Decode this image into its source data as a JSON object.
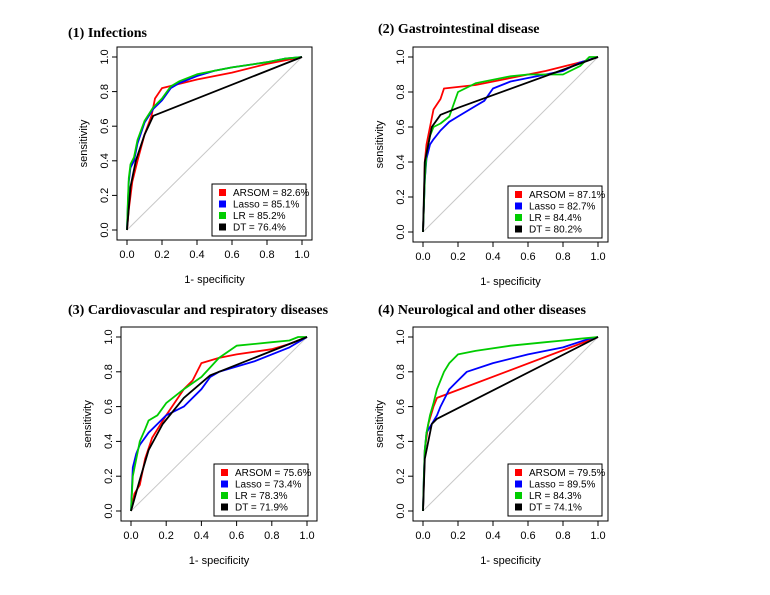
{
  "chart_data": [
    {
      "type": "line",
      "title": "(1) Infections",
      "xlabel": "1- specificity",
      "ylabel": "sensitivity",
      "xlim": [
        0,
        1
      ],
      "ylim": [
        0,
        1
      ],
      "ticks": [
        "0.0",
        "0.2",
        "0.4",
        "0.6",
        "0.8",
        "1.0"
      ],
      "series": [
        {
          "name": "ARSOM = 82.6%",
          "color": "#ff0000",
          "x": [
            0,
            0.01,
            0.03,
            0.06,
            0.1,
            0.14,
            0.16,
            0.2,
            0.4,
            0.6,
            0.8,
            1.0
          ],
          "y": [
            0,
            0.12,
            0.28,
            0.4,
            0.55,
            0.66,
            0.76,
            0.82,
            0.87,
            0.91,
            0.96,
            1.0
          ]
        },
        {
          "name": "Lasso = 85.1%",
          "color": "#0000ff",
          "x": [
            0,
            0.005,
            0.01,
            0.02,
            0.04,
            0.06,
            0.1,
            0.15,
            0.2,
            0.25,
            0.3,
            0.4,
            0.5,
            0.6,
            0.8,
            0.9,
            1.0
          ],
          "y": [
            0,
            0.15,
            0.28,
            0.36,
            0.4,
            0.5,
            0.62,
            0.7,
            0.75,
            0.82,
            0.85,
            0.89,
            0.92,
            0.94,
            0.97,
            0.99,
            1.0
          ]
        },
        {
          "name": "LR = 85.2%",
          "color": "#00cc00",
          "x": [
            0,
            0.005,
            0.01,
            0.02,
            0.04,
            0.06,
            0.1,
            0.15,
            0.2,
            0.25,
            0.3,
            0.4,
            0.5,
            0.6,
            0.8,
            0.9,
            1.0
          ],
          "y": [
            0,
            0.17,
            0.3,
            0.38,
            0.42,
            0.52,
            0.63,
            0.71,
            0.76,
            0.83,
            0.86,
            0.9,
            0.92,
            0.94,
            0.97,
            0.99,
            1.0
          ]
        },
        {
          "name": "DT = 76.4%",
          "color": "#000000",
          "x": [
            0,
            0.02,
            0.05,
            0.1,
            0.15,
            1.0
          ],
          "y": [
            0,
            0.25,
            0.4,
            0.55,
            0.66,
            1.0
          ]
        }
      ],
      "legend": "bottom-right"
    },
    {
      "type": "line",
      "title": "(2) Gastrointestinal disease",
      "xlabel": "1- specificity",
      "ylabel": "sensitivity",
      "xlim": [
        0,
        1
      ],
      "ylim": [
        0,
        1
      ],
      "ticks": [
        "0.0",
        "0.2",
        "0.4",
        "0.6",
        "0.8",
        "1.0"
      ],
      "series": [
        {
          "name": "ARSOM = 87.1%",
          "color": "#ff0000",
          "x": [
            0,
            0.005,
            0.01,
            0.02,
            0.04,
            0.06,
            0.1,
            0.12,
            0.3,
            0.5,
            0.7,
            0.9,
            1.0
          ],
          "y": [
            0,
            0.15,
            0.4,
            0.5,
            0.6,
            0.7,
            0.76,
            0.82,
            0.84,
            0.88,
            0.92,
            0.97,
            1.0
          ]
        },
        {
          "name": "Lasso = 82.7%",
          "color": "#0000ff",
          "x": [
            0,
            0.005,
            0.01,
            0.02,
            0.04,
            0.06,
            0.1,
            0.15,
            0.2,
            0.3,
            0.35,
            0.4,
            0.5,
            0.6,
            0.8,
            0.9,
            1.0
          ],
          "y": [
            0,
            0.15,
            0.3,
            0.42,
            0.5,
            0.53,
            0.58,
            0.63,
            0.66,
            0.72,
            0.75,
            0.82,
            0.86,
            0.88,
            0.92,
            0.97,
            1.0
          ]
        },
        {
          "name": "LR = 84.4%",
          "color": "#00cc00",
          "x": [
            0,
            0.005,
            0.01,
            0.02,
            0.04,
            0.06,
            0.1,
            0.15,
            0.2,
            0.3,
            0.4,
            0.5,
            0.6,
            0.8,
            0.9,
            0.95,
            1.0
          ],
          "y": [
            0,
            0.15,
            0.3,
            0.45,
            0.55,
            0.6,
            0.62,
            0.66,
            0.8,
            0.85,
            0.87,
            0.89,
            0.9,
            0.9,
            0.95,
            1.0,
            1.0
          ]
        },
        {
          "name": "DT = 80.2%",
          "color": "#000000",
          "x": [
            0,
            0.01,
            0.05,
            0.1,
            0.2,
            1.0
          ],
          "y": [
            0,
            0.4,
            0.6,
            0.67,
            0.71,
            1.0
          ]
        }
      ],
      "legend": "bottom-right"
    },
    {
      "type": "line",
      "title": "(3) Cardiovascular and respiratory diseases",
      "xlabel": "1- specificity",
      "ylabel": "sensitivity",
      "xlim": [
        0,
        1
      ],
      "ylim": [
        0,
        1
      ],
      "ticks": [
        "0.0",
        "0.2",
        "0.4",
        "0.6",
        "0.8",
        "1.0"
      ],
      "series": [
        {
          "name": "ARSOM = 75.6%",
          "color": "#ff0000",
          "x": [
            0,
            0.02,
            0.05,
            0.08,
            0.12,
            0.2,
            0.3,
            0.35,
            0.4,
            0.5,
            0.6,
            0.8,
            0.9,
            1.0
          ],
          "y": [
            0,
            0.1,
            0.15,
            0.3,
            0.42,
            0.55,
            0.7,
            0.75,
            0.85,
            0.88,
            0.9,
            0.93,
            0.96,
            1.0
          ]
        },
        {
          "name": "Lasso = 73.4%",
          "color": "#0000ff",
          "x": [
            0,
            0.01,
            0.03,
            0.05,
            0.1,
            0.15,
            0.2,
            0.3,
            0.4,
            0.45,
            0.5,
            0.7,
            0.9,
            1.0
          ],
          "y": [
            0,
            0.25,
            0.33,
            0.38,
            0.45,
            0.5,
            0.55,
            0.6,
            0.7,
            0.77,
            0.8,
            0.86,
            0.94,
            1.0
          ]
        },
        {
          "name": "LR = 78.3%",
          "color": "#00cc00",
          "x": [
            0,
            0.01,
            0.03,
            0.05,
            0.08,
            0.1,
            0.15,
            0.2,
            0.3,
            0.4,
            0.5,
            0.6,
            0.8,
            0.9,
            0.95,
            1.0
          ],
          "y": [
            0,
            0.2,
            0.3,
            0.4,
            0.47,
            0.52,
            0.55,
            0.62,
            0.7,
            0.77,
            0.88,
            0.95,
            0.97,
            0.98,
            1.0,
            1.0
          ]
        },
        {
          "name": "DT = 71.9%",
          "color": "#000000",
          "x": [
            0,
            0.05,
            0.1,
            0.18,
            0.3,
            0.45,
            1.0
          ],
          "y": [
            0,
            0.18,
            0.35,
            0.5,
            0.65,
            0.78,
            1.0
          ]
        }
      ],
      "legend": "bottom-right"
    },
    {
      "type": "line",
      "title": "(4) Neurological and other diseases",
      "xlabel": "1- specificity",
      "ylabel": "sensitivity",
      "xlim": [
        0,
        1
      ],
      "ylim": [
        0,
        1
      ],
      "ticks": [
        "0.0",
        "0.2",
        "0.4",
        "0.6",
        "0.8",
        "1.0"
      ],
      "series": [
        {
          "name": "ARSOM = 79.5%",
          "color": "#ff0000",
          "x": [
            0,
            0.01,
            0.03,
            0.06,
            0.08,
            1.0
          ],
          "y": [
            0,
            0.35,
            0.5,
            0.6,
            0.65,
            1.0
          ]
        },
        {
          "name": "Lasso = 89.5%",
          "color": "#0000ff",
          "x": [
            0,
            0.005,
            0.01,
            0.02,
            0.05,
            0.08,
            0.1,
            0.15,
            0.2,
            0.25,
            0.4,
            0.6,
            0.8,
            0.95,
            1.0
          ],
          "y": [
            0,
            0.2,
            0.35,
            0.45,
            0.5,
            0.55,
            0.6,
            0.7,
            0.75,
            0.8,
            0.85,
            0.9,
            0.94,
            0.99,
            1.0
          ]
        },
        {
          "name": "LR = 84.3%",
          "color": "#00cc00",
          "x": [
            0,
            0.005,
            0.01,
            0.02,
            0.04,
            0.06,
            0.08,
            0.1,
            0.12,
            0.15,
            0.2,
            0.3,
            0.5,
            0.7,
            0.8,
            0.9,
            1.0
          ],
          "y": [
            0,
            0.2,
            0.35,
            0.45,
            0.55,
            0.62,
            0.7,
            0.75,
            0.8,
            0.85,
            0.9,
            0.92,
            0.95,
            0.97,
            0.98,
            0.99,
            1.0
          ]
        },
        {
          "name": "DT = 74.1%",
          "color": "#000000",
          "x": [
            0,
            0.01,
            0.05,
            0.08,
            1.0
          ],
          "y": [
            0,
            0.3,
            0.5,
            0.53,
            1.0
          ]
        }
      ],
      "legend": "bottom-right"
    }
  ]
}
